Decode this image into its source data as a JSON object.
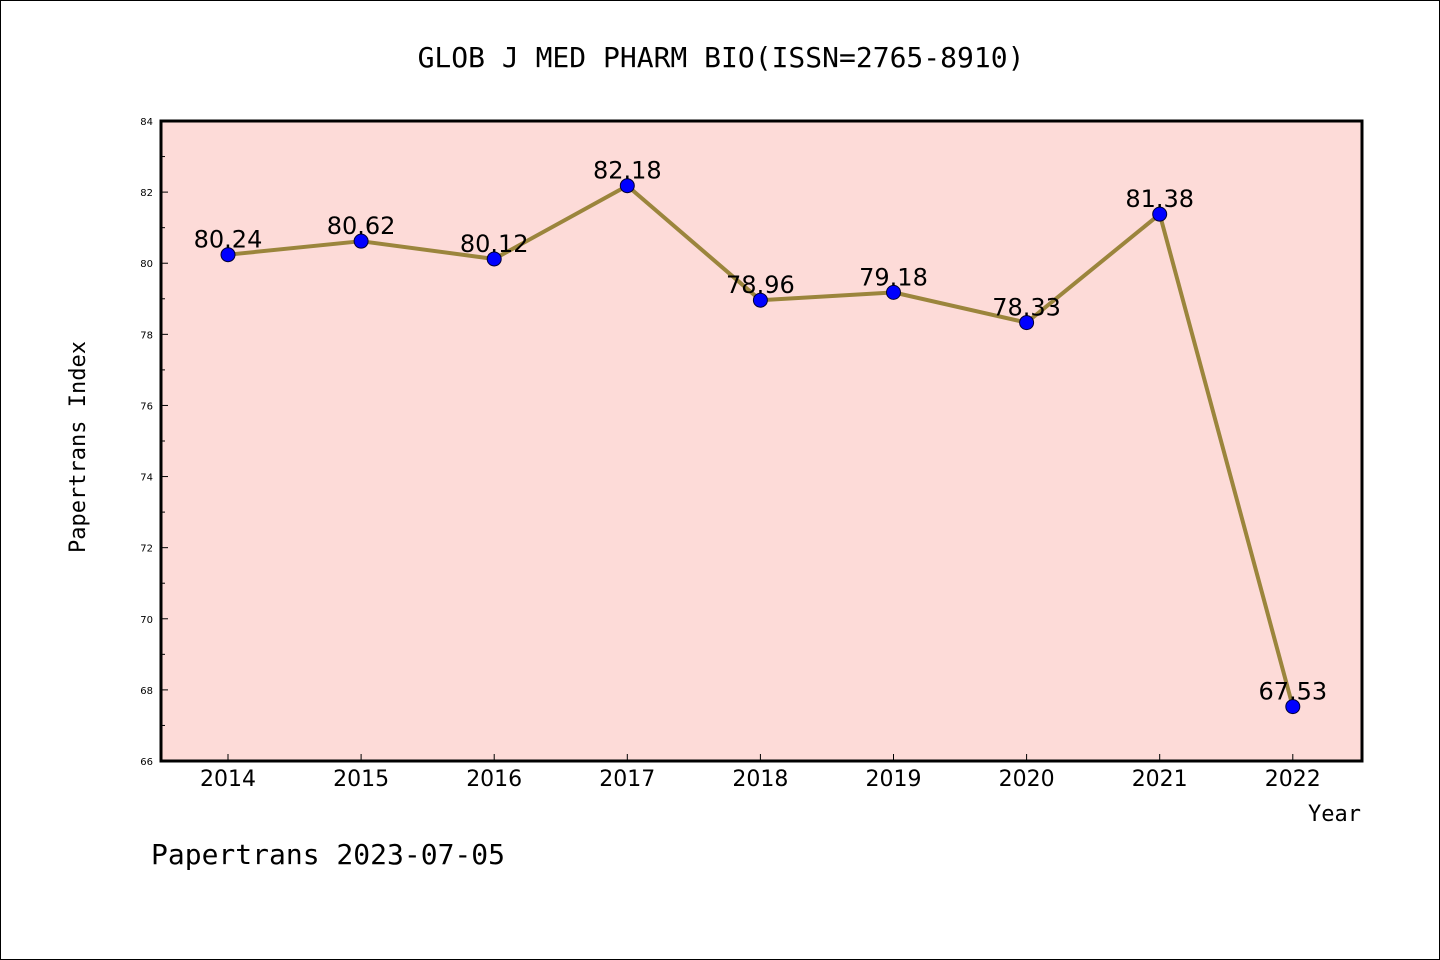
{
  "chart_data": {
    "type": "line",
    "title": "GLOB J MED PHARM BIO(ISSN=2765-8910)",
    "xlabel": "Year",
    "ylabel": "Papertrans Index",
    "categories": [
      "2014",
      "2015",
      "2016",
      "2017",
      "2018",
      "2019",
      "2020",
      "2021",
      "2022"
    ],
    "series": [
      {
        "values": [
          80.24,
          80.62,
          80.12,
          82.18,
          78.96,
          79.18,
          78.33,
          81.38,
          67.53
        ],
        "labels": [
          "80.24",
          "80.62",
          "80.12",
          "82.18",
          "78.96",
          "79.18",
          "78.33",
          "81.38",
          "67.53"
        ]
      }
    ],
    "ylim": [
      66,
      84
    ],
    "yticks": [
      66,
      68,
      70,
      72,
      74,
      76,
      78,
      80,
      82,
      84
    ],
    "ytick_labels": [
      "66",
      "68",
      "70",
      "72",
      "74",
      "76",
      "78",
      "80",
      "82",
      "84"
    ],
    "grid": false,
    "colors": {
      "plot_background": "#fddbd8",
      "line": "#9b853c",
      "marker": "#0000ff"
    }
  },
  "footer": "Papertrans 2023-07-05"
}
